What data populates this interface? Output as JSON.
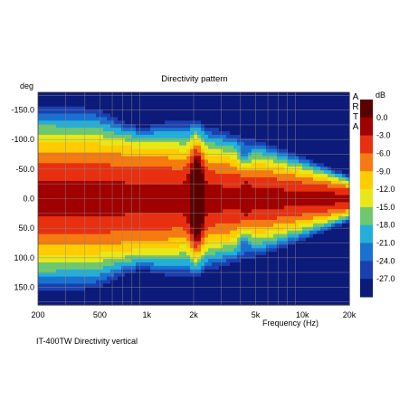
{
  "chart_data": {
    "type": "heatmap",
    "title": "Directivity pattern",
    "xlabel": "Frequency (Hz)",
    "ylabel": "deg",
    "footer": "IT-400TW Directivity vertical",
    "brand": [
      "A",
      "R",
      "T",
      "A"
    ],
    "x_scale": "log",
    "xlim": [
      200,
      20000
    ],
    "ylim": [
      180,
      -180
    ],
    "x_ticks": [
      {
        "value": 200,
        "label": "200"
      },
      {
        "value": 500,
        "label": "500"
      },
      {
        "value": 1000,
        "label": "1k"
      },
      {
        "value": 2000,
        "label": "2k"
      },
      {
        "value": 5000,
        "label": "5k"
      },
      {
        "value": 10000,
        "label": "10k"
      },
      {
        "value": 20000,
        "label": "20k"
      }
    ],
    "y_ticks": [
      {
        "value": -150,
        "label": "-150.0"
      },
      {
        "value": -100,
        "label": "-100.0"
      },
      {
        "value": -50,
        "label": "-50.0"
      },
      {
        "value": 0,
        "label": "0.0"
      },
      {
        "value": 50,
        "label": "50.0"
      },
      {
        "value": 100,
        "label": "100.0"
      },
      {
        "value": 150,
        "label": "150.0"
      }
    ],
    "colorbar": {
      "unit": "dB",
      "levels": [
        {
          "value": 3.0,
          "color": "#5a0000"
        },
        {
          "value": 0.0,
          "color": "#a00000"
        },
        {
          "value": -3.0,
          "color": "#e83010"
        },
        {
          "value": -6.0,
          "color": "#f57a10"
        },
        {
          "value": -9.0,
          "color": "#ffcc00"
        },
        {
          "value": -12.0,
          "color": "#e8e818"
        },
        {
          "value": -15.0,
          "color": "#6ec870"
        },
        {
          "value": -18.0,
          "color": "#22b0d8"
        },
        {
          "value": -21.0,
          "color": "#1a72d0"
        },
        {
          "value": -24.0,
          "color": "#1a40b0"
        },
        {
          "value": -27.0,
          "color": "#0c1a7a"
        }
      ],
      "labels": [
        "0.0",
        "-3.0",
        "-6.0",
        "-9.0",
        "-12.0",
        "-15.0",
        "-18.0",
        "-21.0",
        "-24.0",
        "-27.0"
      ]
    },
    "grid": true
  }
}
